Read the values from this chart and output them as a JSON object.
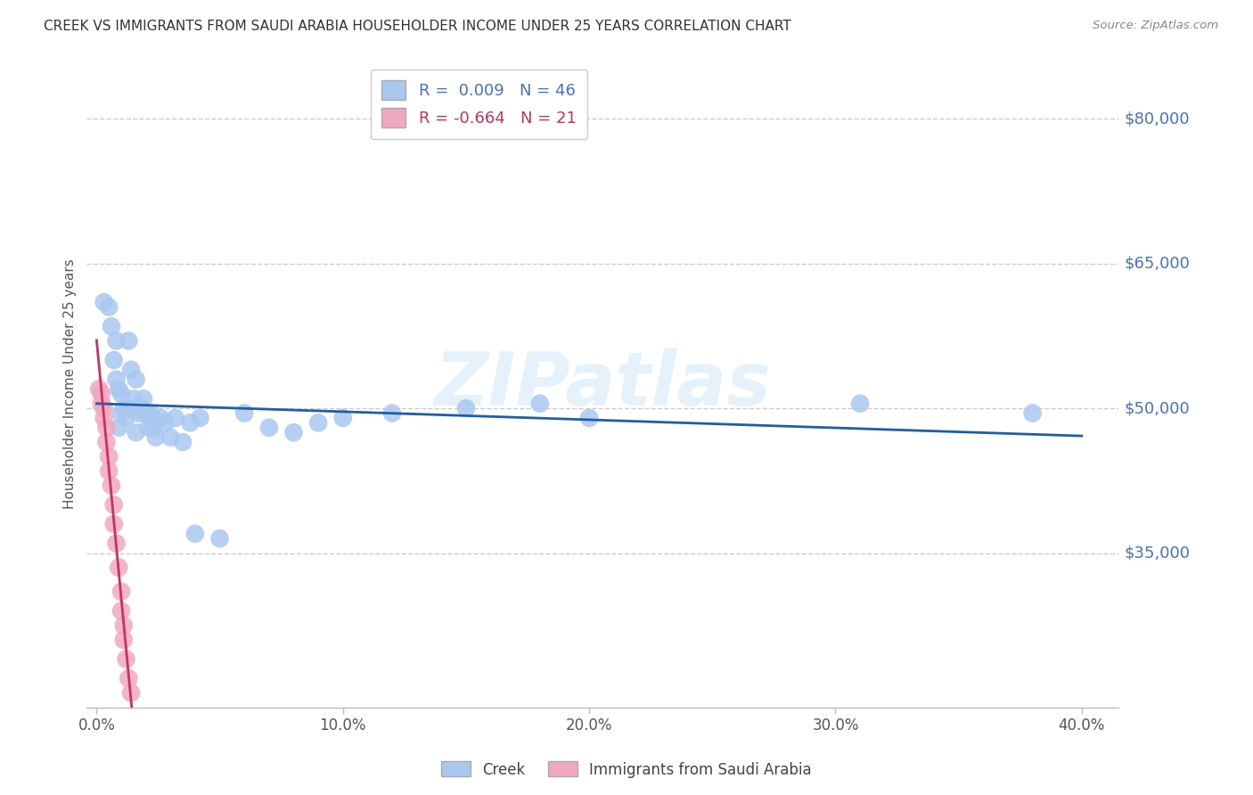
{
  "title": "CREEK VS IMMIGRANTS FROM SAUDI ARABIA HOUSEHOLDER INCOME UNDER 25 YEARS CORRELATION CHART",
  "source": "Source: ZipAtlas.com",
  "ylabel": "Householder Income Under 25 years",
  "ytick_labels": [
    "$35,000",
    "$50,000",
    "$65,000",
    "$80,000"
  ],
  "ytick_vals": [
    35000,
    50000,
    65000,
    80000
  ],
  "ylim": [
    19000,
    86000
  ],
  "xlim": [
    -0.004,
    0.415
  ],
  "xtick_vals": [
    0.0,
    0.1,
    0.2,
    0.3,
    0.4
  ],
  "xtick_labels": [
    "0.0%",
    "10.0%",
    "20.0%",
    "30.0%",
    "40.0%"
  ],
  "creek_R": "0.009",
  "creek_N": "46",
  "saudi_R": "-0.664",
  "saudi_N": "21",
  "legend_labels": [
    "Creek",
    "Immigrants from Saudi Arabia"
  ],
  "creek_color": "#a8c8f0",
  "creek_line_color": "#1a5fa8",
  "saudi_color": "#f0a8c0",
  "saudi_line_color": "#c83060",
  "watermark": "ZIPatlas",
  "creek_x": [
    0.003,
    0.005,
    0.006,
    0.007,
    0.008,
    0.008,
    0.009,
    0.009,
    0.01,
    0.01,
    0.011,
    0.012,
    0.013,
    0.013,
    0.014,
    0.015,
    0.016,
    0.016,
    0.017,
    0.018,
    0.019,
    0.02,
    0.021,
    0.022,
    0.023,
    0.024,
    0.026,
    0.028,
    0.03,
    0.032,
    0.035,
    0.038,
    0.04,
    0.042,
    0.05,
    0.06,
    0.07,
    0.08,
    0.09,
    0.1,
    0.12,
    0.15,
    0.18,
    0.2,
    0.31,
    0.38
  ],
  "creek_y": [
    61000,
    60500,
    58500,
    55000,
    57000,
    53000,
    52000,
    48000,
    51500,
    49500,
    50000,
    49000,
    57000,
    50000,
    54000,
    51000,
    47500,
    53000,
    49500,
    50000,
    51000,
    49500,
    48000,
    49500,
    48000,
    47000,
    49000,
    48500,
    47000,
    49000,
    46500,
    48500,
    37000,
    49000,
    36500,
    49500,
    48000,
    47500,
    48500,
    49000,
    49500,
    50000,
    50500,
    49000,
    50500,
    49500
  ],
  "saudi_x": [
    0.001,
    0.002,
    0.002,
    0.003,
    0.003,
    0.004,
    0.004,
    0.005,
    0.005,
    0.006,
    0.007,
    0.007,
    0.008,
    0.009,
    0.01,
    0.01,
    0.011,
    0.011,
    0.012,
    0.013,
    0.014
  ],
  "saudi_y": [
    52000,
    51500,
    50500,
    50000,
    49000,
    48000,
    46500,
    45000,
    43500,
    42000,
    40000,
    38000,
    36000,
    33500,
    31000,
    29000,
    27500,
    26000,
    24000,
    22000,
    20500
  ]
}
